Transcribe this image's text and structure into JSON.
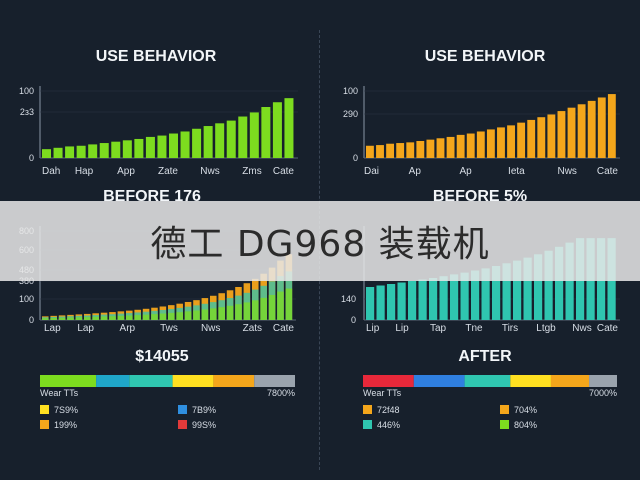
{
  "banner": {
    "text": "德工 DG968 装载机"
  },
  "chart_data": [
    {
      "type": "bar",
      "panel": "top-left",
      "title": "USE BEHAVIOR",
      "color": "#7ddc1f",
      "ytick_labels": [
        "100",
        "2з3",
        "0"
      ],
      "tick_values": [
        100,
        50,
        0
      ],
      "ylim": [
        0,
        100
      ],
      "xtick_labels": [
        "Dah",
        "Hap",
        "App",
        "Zate",
        "Nws",
        "Zms",
        "Cate"
      ],
      "values": [
        13,
        15,
        17,
        18,
        20,
        22,
        24,
        26,
        28,
        31,
        33,
        36,
        39,
        43,
        47,
        51,
        55,
        61,
        67,
        75,
        82,
        88
      ]
    },
    {
      "type": "bar",
      "panel": "top-right",
      "title": "USE BEHAVIOR",
      "color": "#f4a61b",
      "ytick_labels": [
        "100",
        "290",
        "0"
      ],
      "tick_values": [
        100,
        50,
        0
      ],
      "ylim": [
        0,
        100
      ],
      "xtick_labels": [
        "Dai",
        "Ap",
        "Ap",
        "Ieta",
        "Nws",
        "Cate"
      ],
      "values": [
        18,
        19,
        21,
        22,
        23,
        25,
        27,
        29,
        31,
        34,
        36,
        39,
        42,
        45,
        48,
        52,
        56,
        60,
        64,
        69,
        74,
        79,
        84,
        89,
        94
      ]
    },
    {
      "type": "bar",
      "panel": "bottom-left",
      "title": "BEFORE 176",
      "colors": [
        "#f4a61b",
        "#2fc6b0",
        "#7ddc1f"
      ],
      "ytick_labels": [
        "800",
        "600",
        "480",
        "380",
        "100",
        "0"
      ],
      "tick_values": [
        600,
        460,
        360,
        200,
        100,
        0
      ],
      "ylim": [
        0,
        680
      ],
      "xtick_labels": [
        "Lap",
        "Lap",
        "Arp",
        "Tws",
        "Nws",
        "Zats",
        "Cate"
      ],
      "values": [
        30,
        34,
        38,
        42,
        46,
        50,
        55,
        60,
        65,
        71,
        77,
        84,
        92,
        101,
        111,
        122,
        134,
        148,
        163,
        180,
        199,
        220,
        244,
        271,
        302,
        338,
        380,
        430,
        488,
        540
      ]
    },
    {
      "type": "bar",
      "panel": "bottom-right",
      "title": "BEFORE 5%",
      "color": "#2fc6b0",
      "ytick_labels": [
        "140",
        "0"
      ],
      "tick_values": [
        140,
        0
      ],
      "ylim": [
        0,
        300
      ],
      "xtick_labels": [
        "Lip",
        "Lip",
        "Tap",
        "Tne",
        "Tirs",
        "Ltgb",
        "Nws",
        "Cate"
      ],
      "values": [
        110,
        115,
        120,
        125,
        130,
        135,
        140,
        146,
        152,
        158,
        165,
        172,
        180,
        189,
        198,
        208,
        219,
        231,
        244,
        258,
        273,
        273,
        273,
        273
      ]
    }
  ],
  "summaries": [
    {
      "title": "$14055",
      "bar_label": "Wear TTs",
      "bar_value": "7800%",
      "segments": [
        {
          "color": "#7ddc1f",
          "share": 22
        },
        {
          "color": "#1fa6c9",
          "share": 13
        },
        {
          "color": "#2fc6b0",
          "share": 17
        },
        {
          "color": "#ffe021",
          "share": 16
        },
        {
          "color": "#f4a61b",
          "share": 16
        },
        {
          "color": "#9aa3ad",
          "share": 16
        }
      ],
      "legend": [
        {
          "color": "#ffe021",
          "text": "7S9%"
        },
        {
          "color": "#2f8fe0",
          "text": "7B9%"
        },
        {
          "color": "#f4a61b",
          "text": "199%"
        },
        {
          "color": "#e23a3a",
          "text": "99S%"
        }
      ]
    },
    {
      "title": "AFTER",
      "bar_label": "Wear TTs",
      "bar_value": "7000%",
      "segments": [
        {
          "color": "#e8283a",
          "share": 20
        },
        {
          "color": "#2f7fe0",
          "share": 20
        },
        {
          "color": "#2fc6b0",
          "share": 18
        },
        {
          "color": "#ffe021",
          "share": 16
        },
        {
          "color": "#f4a61b",
          "share": 15
        },
        {
          "color": "#9aa3ad",
          "share": 11
        }
      ],
      "legend": [
        {
          "color": "#f4a61b",
          "text": "72f48"
        },
        {
          "color": "#f4a61b",
          "text": "704%"
        },
        {
          "color": "#2fc6b0",
          "text": "446%"
        },
        {
          "color": "#7ddc1f",
          "text": "804%"
        }
      ]
    }
  ]
}
